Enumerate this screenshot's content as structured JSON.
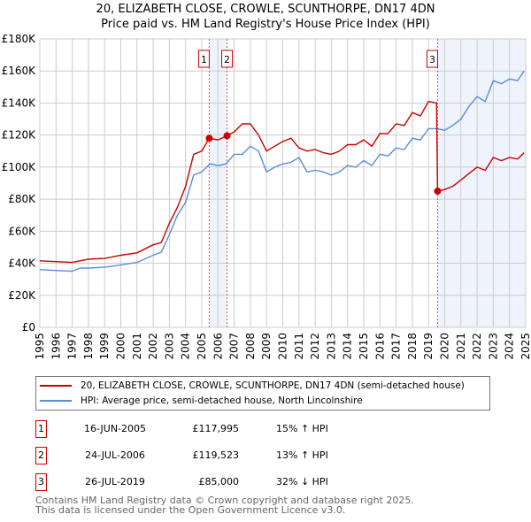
{
  "chart_data": {
    "type": "line",
    "title": "20, ELIZABETH CLOSE, CROWLE, SCUNTHORPE, DN17 4DN",
    "subtitle": "Price paid vs. HM Land Registry's House Price Index (HPI)",
    "xlim": [
      1995,
      2025
    ],
    "ylim": [
      0,
      180000
    ],
    "yticks": [
      0,
      20000,
      40000,
      60000,
      80000,
      100000,
      120000,
      140000,
      160000,
      180000
    ],
    "ytick_labels": [
      "£0",
      "£20K",
      "£40K",
      "£60K",
      "£80K",
      "£100K",
      "£120K",
      "£140K",
      "£160K",
      "£180K"
    ],
    "xticks": [
      "1995",
      "1996",
      "1997",
      "1998",
      "1999",
      "2000",
      "2001",
      "2002",
      "2003",
      "2004",
      "2005",
      "2006",
      "2007",
      "2008",
      "2009",
      "2010",
      "2011",
      "2012",
      "2013",
      "2014",
      "2015",
      "2016",
      "2017",
      "2018",
      "2019",
      "2020",
      "2021",
      "2022",
      "2023",
      "2024",
      "2025"
    ],
    "grid": true,
    "shaded_ranges": [
      [
        2005.46,
        2006.56
      ],
      [
        2019.56,
        2025
      ]
    ],
    "series": [
      {
        "name": "20, ELIZABETH CLOSE, CROWLE, SCUNTHORPE, DN17 4DN (semi-detached house)",
        "color": "#cc0000",
        "x": [
          1995,
          1996,
          1997,
          1998,
          1999,
          2000,
          2001,
          2002,
          2002.5,
          2003,
          2003.5,
          2004,
          2004.5,
          2005,
          2005.46,
          2006,
          2006.56,
          2007,
          2007.5,
          2008,
          2008.5,
          2009,
          2009.5,
          2010,
          2010.5,
          2011,
          2011.5,
          2012,
          2012.5,
          2013,
          2013.5,
          2014,
          2014.5,
          2015,
          2015.5,
          2016,
          2016.5,
          2017,
          2017.5,
          2018,
          2018.5,
          2019,
          2019.5,
          2019.56,
          2020,
          2020.5,
          2021,
          2021.5,
          2022,
          2022.5,
          2023,
          2023.5,
          2024,
          2024.5,
          2024.9
        ],
        "y": [
          41500,
          41000,
          40500,
          42500,
          43000,
          45000,
          46500,
          51500,
          53000,
          65000,
          75000,
          88000,
          108000,
          110000,
          117995,
          117000,
          119523,
          122000,
          127000,
          127000,
          120000,
          110000,
          113000,
          116000,
          118000,
          112000,
          110000,
          111000,
          109000,
          108000,
          110000,
          114000,
          114000,
          117000,
          113000,
          121000,
          121000,
          127000,
          126000,
          134000,
          132000,
          141000,
          140000,
          85000,
          86000,
          88000,
          92000,
          96000,
          100000,
          98000,
          106000,
          104000,
          106000,
          105000,
          109000
        ]
      },
      {
        "name": "HPI: Average price, semi-detached house, North Lincolnshire",
        "color": "#5b8dd6",
        "x": [
          1995,
          1996,
          1997,
          1997.5,
          1998,
          1999,
          2000,
          2001,
          2002,
          2002.5,
          2003,
          2003.5,
          2004,
          2004.5,
          2005,
          2005.5,
          2006,
          2006.5,
          2007,
          2007.5,
          2008,
          2008.5,
          2009,
          2009.5,
          2010,
          2010.5,
          2011,
          2011.5,
          2012,
          2012.5,
          2013,
          2013.5,
          2014,
          2014.5,
          2015,
          2015.5,
          2016,
          2016.5,
          2017,
          2017.5,
          2018,
          2018.5,
          2019,
          2019.5,
          2020,
          2020.5,
          2021,
          2021.5,
          2022,
          2022.5,
          2023,
          2023.5,
          2024,
          2024.5,
          2024.9
        ],
        "y": [
          36000,
          35500,
          35000,
          37000,
          37000,
          37500,
          39000,
          40500,
          45000,
          47000,
          58000,
          70000,
          78000,
          95000,
          97000,
          102000,
          101000,
          102000,
          108000,
          108000,
          113000,
          110000,
          97000,
          100000,
          102000,
          103000,
          106000,
          97000,
          98000,
          97000,
          95000,
          97000,
          101000,
          100000,
          104000,
          101000,
          108000,
          107000,
          112000,
          111000,
          118000,
          117000,
          124000,
          124000,
          123000,
          126000,
          130000,
          138000,
          144000,
          141000,
          154000,
          152000,
          155000,
          154000,
          160000
        ]
      }
    ],
    "sales": [
      {
        "id": "1",
        "x": 2005.46,
        "y": 117995
      },
      {
        "id": "2",
        "x": 2006.56,
        "y": 119523
      },
      {
        "id": "3",
        "x": 2019.56,
        "y": 85000
      }
    ]
  },
  "legend": {
    "property": "20, ELIZABETH CLOSE, CROWLE, SCUNTHORPE, DN17 4DN (semi-detached house)",
    "hpi": "HPI: Average price, semi-detached house, North Lincolnshire"
  },
  "transactions": [
    {
      "id": "1",
      "date": "16-JUN-2005",
      "price": "£117,995",
      "hpi": "15% ↑ HPI"
    },
    {
      "id": "2",
      "date": "24-JUL-2006",
      "price": "£119,523",
      "hpi": "13% ↑ HPI"
    },
    {
      "id": "3",
      "date": "26-JUL-2019",
      "price": "£85,000",
      "hpi": "32% ↓ HPI"
    }
  ],
  "footer": {
    "line1": "Contains HM Land Registry data © Crown copyright and database right 2025.",
    "line2": "This data is licensed under the Open Government Licence v3.0."
  }
}
